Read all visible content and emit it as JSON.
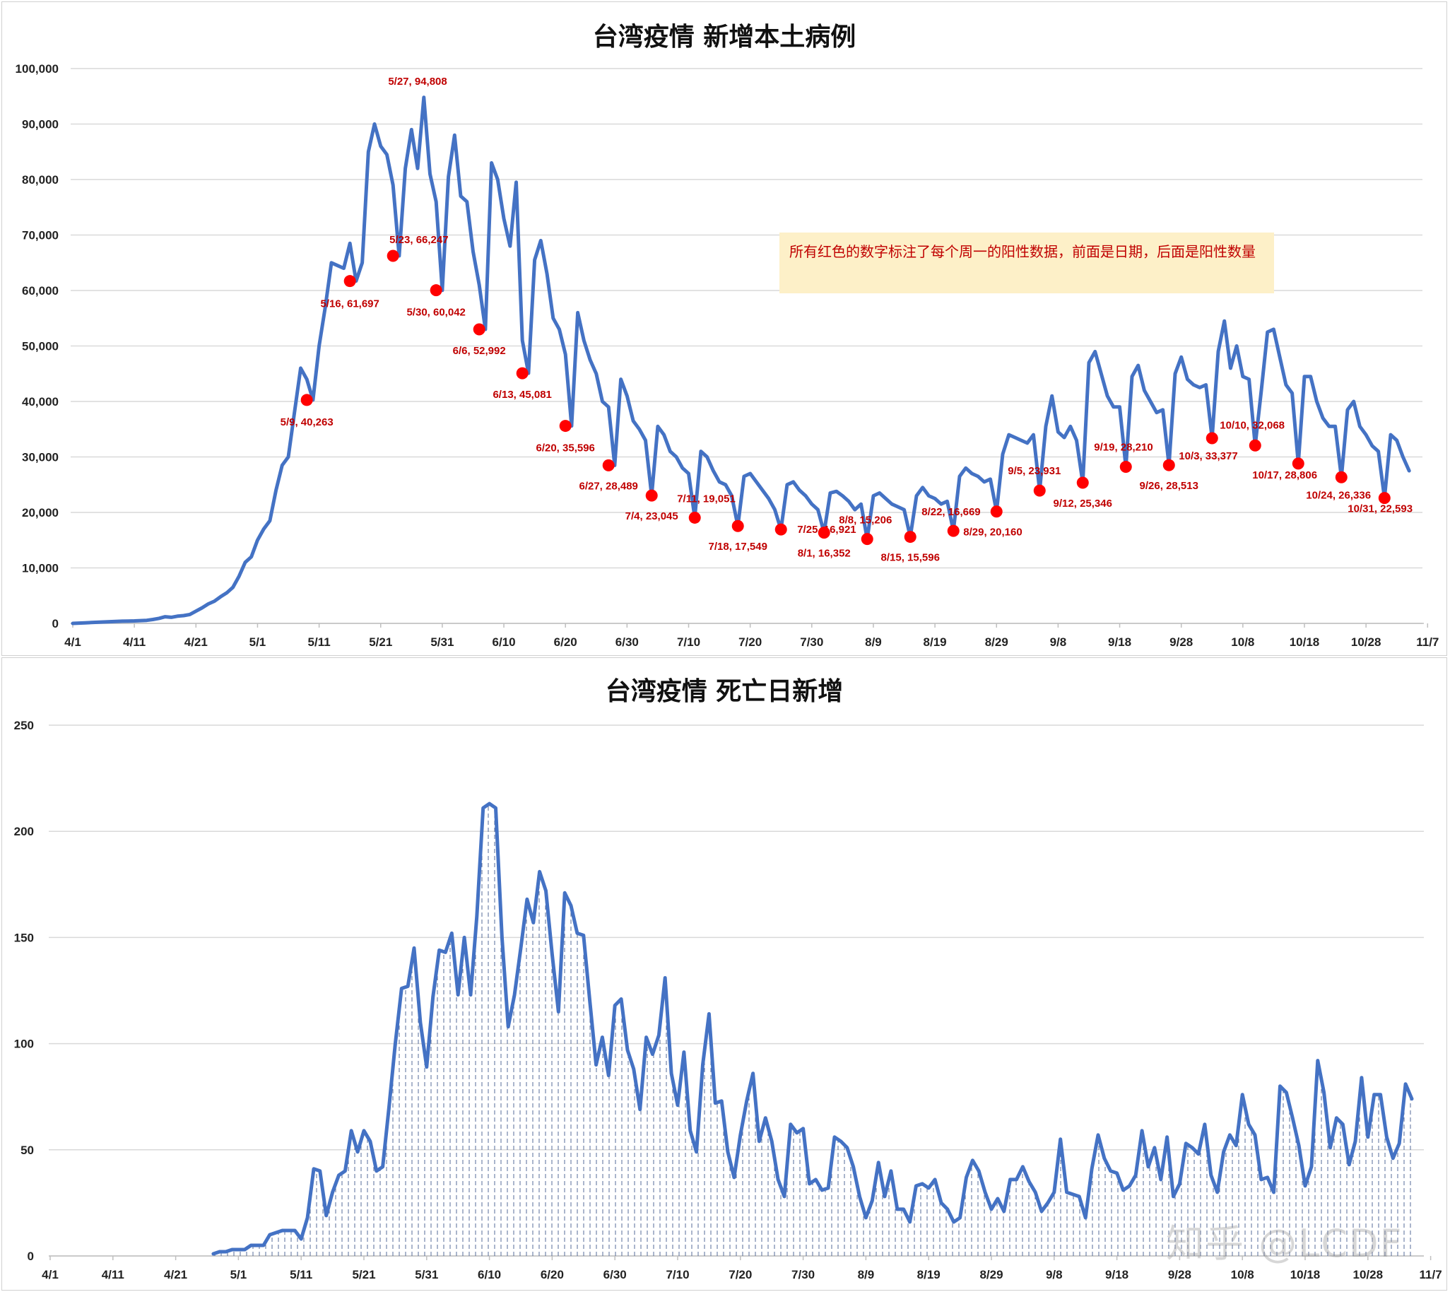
{
  "watermark": "知乎 @LCDF",
  "chart_data": [
    {
      "type": "line",
      "title": "台湾疫情 新增本土病例",
      "ylim": [
        0,
        100000
      ],
      "yticks": [
        "0",
        "10,000",
        "20,000",
        "30,000",
        "40,000",
        "50,000",
        "60,000",
        "70,000",
        "80,000",
        "90,000",
        "100,000"
      ],
      "xticks": [
        "4/1",
        "4/11",
        "4/21",
        "5/1",
        "5/11",
        "5/21",
        "5/31",
        "6/10",
        "6/20",
        "6/30",
        "7/10",
        "7/20",
        "7/30",
        "8/9",
        "8/19",
        "8/29",
        "9/8",
        "9/18",
        "9/28",
        "10/8",
        "10/18",
        "10/28",
        "11/7"
      ],
      "x_start": "4/1",
      "line_color": "#4472c4",
      "marker_color": "#ff0000",
      "annotation": "所有红色的数字标注了每个周一的阳性数据，前面是日期，后面是阳性数量",
      "series_values": [
        0,
        50,
        100,
        150,
        200,
        250,
        300,
        350,
        400,
        420,
        450,
        500,
        550,
        700,
        900,
        1200,
        1100,
        1300,
        1400,
        1600,
        2200,
        2800,
        3500,
        4000,
        4800,
        5500,
        6500,
        8500,
        11000,
        12000,
        15000,
        17000,
        18500,
        24000,
        28500,
        30000,
        38000,
        46000,
        44000,
        40263,
        50000,
        57000,
        65000,
        64500,
        64000,
        68500,
        61697,
        65000,
        85000,
        90000,
        86000,
        84500,
        79000,
        66247,
        82000,
        89000,
        82000,
        94808,
        81000,
        76000,
        60042,
        80500,
        88000,
        77000,
        76000,
        67000,
        61000,
        52992,
        83000,
        80000,
        73000,
        68000,
        79500,
        51000,
        45081,
        65500,
        69000,
        63000,
        55000,
        53000,
        48500,
        35596,
        56000,
        51000,
        47500,
        45000,
        40000,
        39000,
        28489,
        44000,
        41000,
        36500,
        35000,
        33000,
        23045,
        35500,
        34000,
        31000,
        30000,
        28000,
        27000,
        19051,
        31000,
        30000,
        27500,
        25500,
        25000,
        23000,
        17549,
        26500,
        27000,
        25500,
        24000,
        22500,
        20500,
        16921,
        25000,
        25500,
        24000,
        23000,
        21500,
        20500,
        16352,
        23500,
        23800,
        23000,
        22000,
        20500,
        21500,
        15206,
        23000,
        23500,
        22500,
        21500,
        21000,
        20500,
        15596,
        23000,
        24500,
        23000,
        22500,
        21500,
        22000,
        16669,
        26500,
        28000,
        27000,
        26500,
        25500,
        26000,
        20160,
        30500,
        34000,
        33500,
        33000,
        32500,
        34000,
        23931,
        35500,
        41000,
        34500,
        33500,
        35500,
        33000,
        25346,
        47000,
        49000,
        45000,
        41000,
        39000,
        39000,
        28210,
        44500,
        46500,
        42000,
        40000,
        38000,
        38500,
        28513,
        45000,
        48000,
        44000,
        43000,
        42500,
        43000,
        33377,
        49000,
        54500,
        46000,
        50000,
        44500,
        44000,
        32068,
        42000,
        52500,
        53000,
        48000,
        43000,
        41500,
        28806,
        44500,
        44500,
        40000,
        37000,
        35500,
        35500,
        26336,
        38500,
        40000,
        35500,
        34000,
        32000,
        31000,
        22593,
        34000,
        33000,
        30000,
        27500
      ],
      "monday_points": [
        {
          "date": "5/9",
          "value": 40263,
          "label": "5/9, 40,263"
        },
        {
          "date": "5/16",
          "value": 61697,
          "label": "5/16, 61,697"
        },
        {
          "date": "5/23",
          "value": 66247,
          "label": "5/23, 66,247"
        },
        {
          "date": "5/27",
          "value": 94808,
          "label": "5/27, 94,808"
        },
        {
          "date": "5/30",
          "value": 60042,
          "label": "5/30, 60,042"
        },
        {
          "date": "6/6",
          "value": 52992,
          "label": "6/6, 52,992"
        },
        {
          "date": "6/13",
          "value": 45081,
          "label": "6/13, 45,081"
        },
        {
          "date": "6/20",
          "value": 35596,
          "label": "6/20, 35,596"
        },
        {
          "date": "6/27",
          "value": 28489,
          "label": "6/27, 28,489"
        },
        {
          "date": "7/4",
          "value": 23045,
          "label": "7/4, 23,045"
        },
        {
          "date": "7/11",
          "value": 19051,
          "label": "7/11, 19,051"
        },
        {
          "date": "7/18",
          "value": 17549,
          "label": "7/18, 17,549"
        },
        {
          "date": "7/25",
          "value": 16921,
          "label": "7/25, 16,921"
        },
        {
          "date": "8/1",
          "value": 16352,
          "label": "8/1, 16,352"
        },
        {
          "date": "8/8",
          "value": 15206,
          "label": "8/8, 15,206"
        },
        {
          "date": "8/15",
          "value": 15596,
          "label": "8/15, 15,596"
        },
        {
          "date": "8/22",
          "value": 16669,
          "label": "8/22, 16,669"
        },
        {
          "date": "8/29",
          "value": 20160,
          "label": "8/29, 20,160"
        },
        {
          "date": "9/5",
          "value": 23931,
          "label": "9/5, 23,931"
        },
        {
          "date": "9/12",
          "value": 25346,
          "label": "9/12, 25,346"
        },
        {
          "date": "9/19",
          "value": 28210,
          "label": "9/19, 28,210"
        },
        {
          "date": "9/26",
          "value": 28513,
          "label": "9/26, 28,513"
        },
        {
          "date": "10/3",
          "value": 33377,
          "label": "10/3, 33,377"
        },
        {
          "date": "10/10",
          "value": 32068,
          "label": "10/10, 32,068"
        },
        {
          "date": "10/17",
          "value": 28806,
          "label": "10/17, 28,806"
        },
        {
          "date": "10/24",
          "value": 26336,
          "label": "10/24, 26,336"
        },
        {
          "date": "10/31",
          "value": 22593,
          "label": "10/31, 22,593"
        }
      ]
    },
    {
      "type": "area",
      "title": "台湾疫情 死亡日新增",
      "ylim": [
        0,
        250
      ],
      "yticks": [
        "0",
        "50",
        "100",
        "150",
        "200",
        "250"
      ],
      "xticks": [
        "4/1",
        "4/11",
        "4/21",
        "5/1",
        "5/11",
        "5/21",
        "5/31",
        "6/10",
        "6/20",
        "6/30",
        "7/10",
        "7/20",
        "7/30",
        "8/9",
        "8/19",
        "8/29",
        "9/8",
        "9/18",
        "9/28",
        "10/8",
        "10/18",
        "10/28",
        "11/7"
      ],
      "x_start": "4/1",
      "line_color": "#4472c4",
      "fill_pattern": "dashed vertical lines",
      "series_start": "4/27",
      "series_values": [
        1,
        2,
        2,
        3,
        3,
        3,
        5,
        5,
        5,
        10,
        11,
        12,
        12,
        12,
        8,
        18,
        41,
        40,
        19,
        30,
        38,
        40,
        59,
        49,
        59,
        54,
        40,
        42,
        70,
        100,
        126,
        127,
        145,
        110,
        89,
        122,
        144,
        143,
        152,
        123,
        150,
        123,
        160,
        211,
        213,
        211,
        150,
        108,
        123,
        145,
        168,
        157,
        181,
        172,
        142,
        115,
        171,
        165,
        152,
        151,
        120,
        90,
        103,
        85,
        118,
        121,
        97,
        88,
        69,
        103,
        95,
        104,
        131,
        86,
        71,
        96,
        59,
        49,
        90,
        114,
        72,
        73,
        49,
        37,
        57,
        73,
        86,
        54,
        65,
        54,
        36,
        28,
        62,
        58,
        60,
        34,
        36,
        31,
        32,
        56,
        54,
        51,
        42,
        28,
        18,
        26,
        44,
        28,
        40,
        22,
        22,
        16,
        33,
        34,
        32,
        36,
        25,
        22,
        16,
        18,
        37,
        45,
        40,
        30,
        22,
        27,
        21,
        36,
        36,
        42,
        35,
        30,
        21,
        25,
        30,
        55,
        30,
        29,
        28,
        18,
        41,
        57,
        46,
        40,
        39,
        31,
        33,
        38,
        59,
        42,
        51,
        36,
        56,
        28,
        34,
        53,
        51,
        48,
        62,
        38,
        30,
        49,
        57,
        52,
        76,
        62,
        57,
        36,
        37,
        30,
        80,
        77,
        65,
        52,
        33,
        42,
        92,
        77,
        51,
        65,
        62,
        43,
        54,
        84,
        56,
        76,
        76,
        56,
        46,
        53,
        81,
        74
      ]
    }
  ]
}
